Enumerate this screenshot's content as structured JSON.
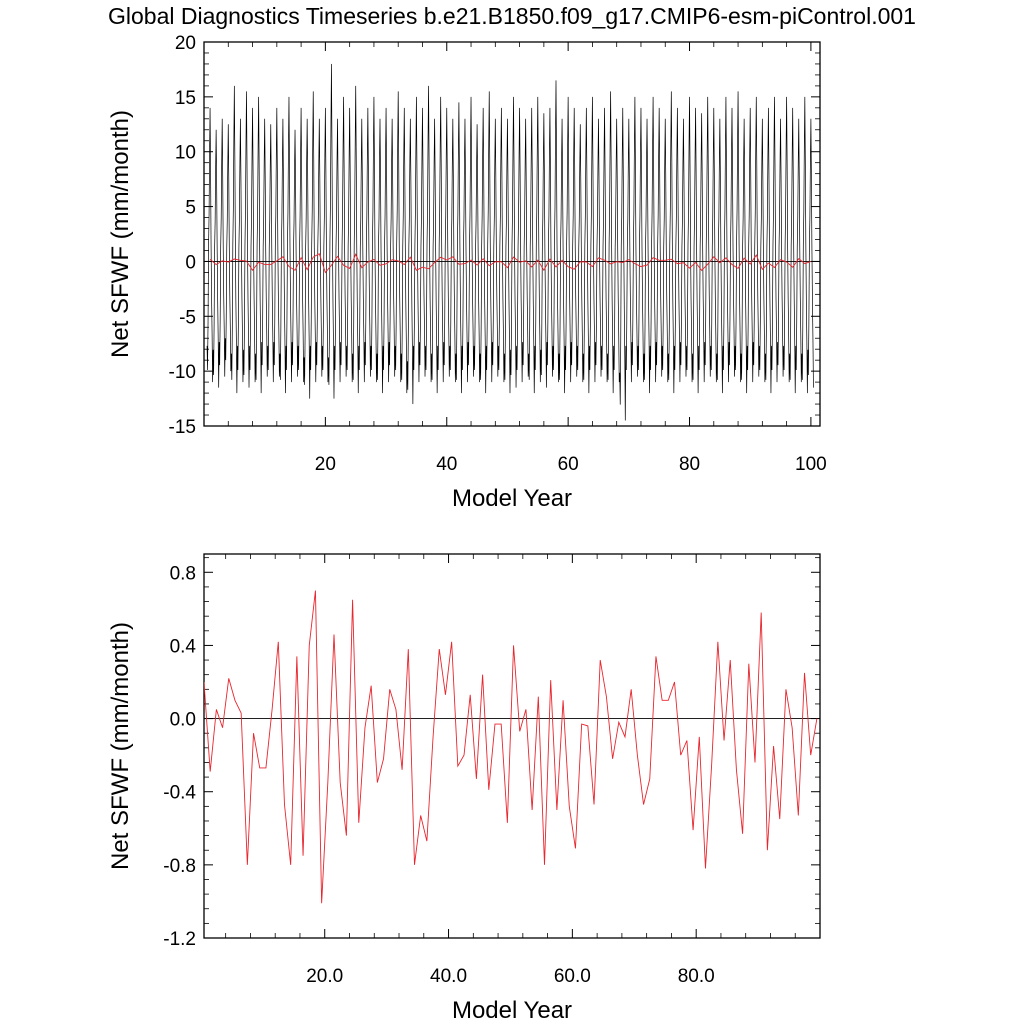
{
  "figure": {
    "title": "Global Diagnostics Timeseries b.e21.B1850.f09_g17.CMIP6-esm-piControl.001"
  },
  "colors": {
    "monthly_line": "#000000",
    "annual_line": "#e8262e",
    "axis": "#000000"
  },
  "chart_data": [
    {
      "type": "line",
      "xlabel": "Model Year",
      "ylabel": "Net SFWF (mm/month)",
      "xlim": [
        0,
        101.5
      ],
      "ylim": [
        -15,
        20
      ],
      "x_ticks": [
        20,
        40,
        60,
        80,
        100
      ],
      "x_tick_labels": [
        "20",
        "40",
        "60",
        "80",
        "100"
      ],
      "y_ticks": [
        -15,
        -10,
        -5,
        0,
        5,
        10,
        15,
        20
      ],
      "y_tick_labels": [
        "-15",
        "-10",
        "-5",
        "0",
        "5",
        "10",
        "15",
        "20"
      ],
      "reference_line": 0,
      "series": [
        {
          "name": "monthly",
          "x_start": 0.5,
          "x_step": 0.0833333,
          "values_note": "Seasonal cycle per year (12 months), scaled to per-year peak/trough below",
          "monthly_shape": [
            -0.7,
            -0.9,
            -0.5,
            0.1,
            0.3,
            0.7,
            1.0,
            0.6,
            0.1,
            -0.3,
            -0.6,
            -1.0
          ],
          "year_peaks": [
            14,
            12,
            13,
            12.5,
            16,
            13,
            15.5,
            14,
            15,
            13,
            12.5,
            14,
            13,
            15,
            12,
            14,
            13,
            15.5,
            13,
            14,
            18,
            13,
            15,
            14,
            16,
            13,
            14,
            15,
            13,
            14,
            13,
            15.5,
            14,
            13,
            15,
            14,
            16,
            13,
            15,
            14,
            13,
            14.5,
            13,
            15,
            12.5,
            14,
            15.5,
            13,
            14,
            13,
            15,
            14,
            13,
            14,
            15,
            13.5,
            14,
            16.5,
            13,
            15,
            14,
            12.5,
            14,
            15,
            13,
            14,
            15.5,
            13,
            14,
            13,
            15,
            14,
            13,
            15,
            14,
            13,
            15.5,
            14,
            13,
            15,
            14,
            13.5,
            15,
            14,
            13,
            15,
            14,
            15.5,
            13,
            14,
            15,
            13,
            14,
            15,
            13,
            15,
            14,
            13,
            15,
            13
          ],
          "year_troughs": [
            -11,
            -11.5,
            -10.5,
            -10,
            -12,
            -11,
            -11.5,
            -11,
            -12,
            -10.5,
            -11,
            -10.5,
            -12,
            -11,
            -10.5,
            -11,
            -12.5,
            -11,
            -10.5,
            -11,
            -12.5,
            -11,
            -10.5,
            -11,
            -12,
            -11,
            -10.5,
            -11,
            -12,
            -11,
            -10.5,
            -11,
            -12,
            -13,
            -11,
            -10.5,
            -11,
            -12,
            -11,
            -10.5,
            -11,
            -12,
            -11,
            -10.5,
            -11,
            -12,
            -11,
            -10.5,
            -11,
            -12,
            -11.5,
            -11,
            -10.5,
            -12,
            -11,
            -11.5,
            -10.5,
            -11,
            -12,
            -11,
            -10.5,
            -11,
            -12,
            -11,
            -10.5,
            -11,
            -12,
            -11,
            -14.5,
            -11,
            -10.5,
            -11,
            -12,
            -11,
            -10.5,
            -11,
            -12,
            -11,
            -10.5,
            -11,
            -12,
            -11,
            -10.5,
            -11,
            -12,
            -11,
            -10.5,
            -11,
            -12,
            -11,
            -10.5,
            -11,
            -12,
            -11,
            -10.5,
            -11,
            -12,
            -11,
            -12,
            -11.5
          ]
        },
        {
          "name": "annual_mean",
          "x": [
            1,
            2,
            3,
            4,
            5,
            6,
            7,
            8,
            9,
            10,
            11,
            12,
            13,
            14,
            15,
            16,
            17,
            18,
            19,
            20,
            21,
            22,
            23,
            24,
            25,
            26,
            27,
            28,
            29,
            30,
            31,
            32,
            33,
            34,
            35,
            36,
            37,
            38,
            39,
            40,
            41,
            42,
            43,
            44,
            45,
            46,
            47,
            48,
            49,
            50,
            51,
            52,
            53,
            54,
            55,
            56,
            57,
            58,
            59,
            60,
            61,
            62,
            63,
            64,
            65,
            66,
            67,
            68,
            69,
            70,
            71,
            72,
            73,
            74,
            75,
            76,
            77,
            78,
            79,
            80,
            81,
            82,
            83,
            84,
            85,
            86,
            87,
            88,
            89,
            90,
            91,
            92,
            93,
            94,
            95,
            96,
            97,
            98,
            99,
            100
          ],
          "values": [
            0.2,
            -0.29,
            0.05,
            -0.05,
            0.22,
            0.1,
            0.03,
            -0.8,
            -0.08,
            -0.27,
            -0.27,
            0.05,
            0.42,
            -0.47,
            -0.8,
            0.34,
            -0.75,
            0.4,
            0.7,
            -1.01,
            -0.35,
            0.46,
            -0.35,
            -0.64,
            0.65,
            -0.57,
            -0.05,
            0.18,
            -0.35,
            -0.22,
            0.16,
            0.05,
            -0.28,
            0.38,
            -0.8,
            -0.53,
            -0.67,
            -0.1,
            0.38,
            0.13,
            0.42,
            -0.26,
            -0.2,
            0.13,
            -0.33,
            0.24,
            -0.39,
            -0.03,
            -0.03,
            -0.57,
            0.4,
            -0.07,
            0.05,
            -0.5,
            0.12,
            -0.8,
            0.21,
            -0.5,
            0.1,
            -0.48,
            -0.71,
            -0.03,
            -0.04,
            -0.47,
            0.32,
            0.12,
            -0.22,
            -0.02,
            -0.1,
            0.16,
            -0.2,
            -0.47,
            -0.33,
            0.34,
            0.1,
            0.1,
            0.2,
            -0.2,
            -0.12,
            -0.61,
            -0.1,
            -0.82,
            -0.25,
            0.42,
            -0.12,
            0.32,
            -0.28,
            -0.63,
            0.3,
            -0.24,
            0.58,
            -0.72,
            -0.15,
            -0.55,
            0.16,
            -0.05,
            -0.53,
            0.25,
            -0.2,
            0.0
          ]
        }
      ]
    },
    {
      "type": "line",
      "xlabel": "Model Year",
      "ylabel": "Net SFWF (mm/month)",
      "xlim": [
        0.5,
        100
      ],
      "ylim": [
        -1.2,
        0.9
      ],
      "x_ticks": [
        20,
        40,
        60,
        80
      ],
      "x_tick_labels": [
        "20.0",
        "40.0",
        "60.0",
        "80.0"
      ],
      "y_ticks": [
        -1.2,
        -0.8,
        -0.4,
        0.0,
        0.4,
        0.8
      ],
      "y_tick_labels": [
        "-1.2",
        "-0.8",
        "-0.4",
        "0.0",
        "0.4",
        "0.8"
      ],
      "reference_line": 0,
      "series": [
        {
          "name": "annual_mean",
          "x_start": 0.5,
          "x_step": 1,
          "values": [
            0.2,
            -0.29,
            0.05,
            -0.05,
            0.22,
            0.1,
            0.03,
            -0.8,
            -0.08,
            -0.27,
            -0.27,
            0.05,
            0.42,
            -0.47,
            -0.8,
            0.34,
            -0.75,
            0.4,
            0.7,
            -1.01,
            -0.35,
            0.46,
            -0.35,
            -0.64,
            0.65,
            -0.57,
            -0.05,
            0.18,
            -0.35,
            -0.22,
            0.16,
            0.05,
            -0.28,
            0.38,
            -0.8,
            -0.53,
            -0.67,
            -0.1,
            0.38,
            0.13,
            0.42,
            -0.26,
            -0.2,
            0.13,
            -0.33,
            0.24,
            -0.39,
            -0.03,
            -0.03,
            -0.57,
            0.4,
            -0.07,
            0.05,
            -0.5,
            0.12,
            -0.8,
            0.21,
            -0.5,
            0.1,
            -0.48,
            -0.71,
            -0.03,
            -0.04,
            -0.47,
            0.32,
            0.12,
            -0.22,
            -0.02,
            -0.1,
            0.16,
            -0.2,
            -0.47,
            -0.33,
            0.34,
            0.1,
            0.1,
            0.2,
            -0.2,
            -0.12,
            -0.61,
            -0.1,
            -0.82,
            -0.25,
            0.42,
            -0.12,
            0.32,
            -0.28,
            -0.63,
            0.3,
            -0.24,
            0.58,
            -0.72,
            -0.15,
            -0.55,
            0.16,
            -0.05,
            -0.53,
            0.25,
            -0.2,
            0.0
          ]
        }
      ]
    }
  ]
}
